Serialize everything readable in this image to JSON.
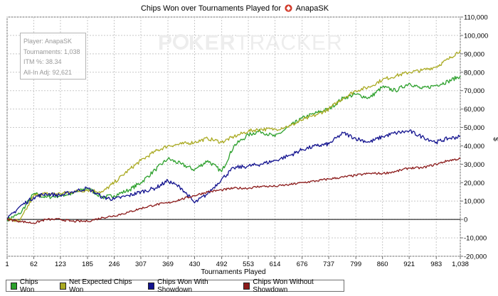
{
  "page": {
    "title_prefix": "Chips Won over Tournaments Played for",
    "player_name": "AnapaSK",
    "watermark": {
      "left": "P",
      "bold": "KER",
      "light": "TRACKER"
    },
    "stats": {
      "player": "Player: AnapaSK",
      "tournaments": "Tournaments: 1,038",
      "itm": "ITM %: 38.34",
      "allin": "All-In Adj: 92,621"
    },
    "legend": [
      {
        "label": "Chips Won",
        "color": "#2ca02c"
      },
      {
        "label": "Net Expected Chips Won",
        "color": "#aaaa22"
      },
      {
        "label": "Chips Won With Showdown",
        "color": "#12128f"
      },
      {
        "label": "Chips Won Without Showdown",
        "color": "#8b1a1a"
      }
    ],
    "icons": {
      "spade": "spade-icon",
      "chip": "poker-chip-icon"
    }
  },
  "chart_data": {
    "type": "line",
    "xlabel": "Tournaments Played",
    "ylabel": "$",
    "xlim": [
      1,
      1038
    ],
    "ylim": [
      -20000,
      110000
    ],
    "x_ticks": [
      1,
      62,
      123,
      185,
      246,
      307,
      369,
      430,
      492,
      553,
      614,
      676,
      737,
      799,
      860,
      921,
      983,
      1038
    ],
    "x_tick_labels": [
      "1",
      "62",
      "123",
      "185",
      "246",
      "307",
      "369",
      "430",
      "492",
      "553",
      "614",
      "676",
      "737",
      "799",
      "860",
      "921",
      "983",
      "1,038"
    ],
    "y_ticks": [
      -20000,
      -10000,
      0,
      10000,
      20000,
      30000,
      40000,
      50000,
      60000,
      70000,
      80000,
      90000,
      100000,
      110000
    ],
    "y_tick_labels": [
      "-20,000",
      "-10,000",
      "0",
      "10,000",
      "20,000",
      "30,000",
      "40,000",
      "50,000",
      "60,000",
      "70,000",
      "80,000",
      "90,000",
      "100,000",
      "110,000"
    ],
    "grid": true,
    "legend_position": "bottom",
    "series": [
      {
        "name": "Chips Won",
        "color": "#2ca02c",
        "x": [
          1,
          30,
          62,
          90,
          123,
          150,
          185,
          220,
          246,
          280,
          307,
          340,
          369,
          400,
          430,
          460,
          492,
          520,
          553,
          580,
          614,
          650,
          676,
          710,
          737,
          770,
          799,
          830,
          860,
          890,
          921,
          950,
          983,
          1010,
          1038
        ],
        "y": [
          0,
          3000,
          14000,
          12000,
          13000,
          14000,
          17000,
          12000,
          13000,
          16000,
          20000,
          27000,
          33000,
          30000,
          27000,
          32000,
          26000,
          40000,
          46000,
          48000,
          45000,
          51000,
          55000,
          58000,
          60000,
          66000,
          68000,
          66000,
          72000,
          70000,
          74000,
          71000,
          73000,
          75000,
          78000
        ]
      },
      {
        "name": "Net Expected Chips Won",
        "color": "#aaaa22",
        "x": [
          1,
          30,
          62,
          90,
          123,
          150,
          185,
          220,
          246,
          280,
          307,
          340,
          369,
          400,
          430,
          460,
          492,
          520,
          553,
          580,
          614,
          650,
          676,
          710,
          737,
          770,
          799,
          830,
          860,
          890,
          921,
          950,
          983,
          1010,
          1038
        ],
        "y": [
          0,
          -1000,
          13000,
          14000,
          14000,
          15000,
          16000,
          15000,
          20000,
          27000,
          32000,
          37000,
          40000,
          41000,
          42000,
          44000,
          42000,
          45000,
          48000,
          49000,
          49000,
          51000,
          54000,
          57000,
          60000,
          66000,
          70000,
          72000,
          76000,
          78000,
          80000,
          81000,
          83000,
          87000,
          92000
        ]
      },
      {
        "name": "Chips Won With Showdown",
        "color": "#12128f",
        "x": [
          1,
          30,
          62,
          90,
          123,
          150,
          185,
          220,
          246,
          280,
          307,
          340,
          369,
          400,
          430,
          460,
          492,
          520,
          553,
          580,
          614,
          650,
          676,
          710,
          737,
          770,
          799,
          830,
          860,
          890,
          921,
          950,
          983,
          1010,
          1038
        ],
        "y": [
          0,
          7000,
          12000,
          14000,
          13000,
          15000,
          17000,
          12000,
          11000,
          13000,
          15000,
          17000,
          21000,
          17000,
          9000,
          14000,
          22000,
          28000,
          29000,
          30000,
          32000,
          35000,
          38000,
          40000,
          41000,
          47000,
          44000,
          42000,
          45000,
          47000,
          48000,
          45000,
          42000,
          44000,
          45000
        ]
      },
      {
        "name": "Chips Won Without Showdown",
        "color": "#8b1a1a",
        "x": [
          1,
          30,
          62,
          90,
          123,
          150,
          185,
          220,
          246,
          280,
          307,
          340,
          369,
          400,
          430,
          460,
          492,
          520,
          553,
          580,
          614,
          650,
          676,
          710,
          737,
          770,
          799,
          830,
          860,
          890,
          921,
          950,
          983,
          1010,
          1038
        ],
        "y": [
          0,
          -1000,
          -2000,
          0,
          0,
          -1000,
          -1000,
          1000,
          2000,
          4000,
          6000,
          8000,
          9000,
          11000,
          13000,
          15000,
          16000,
          17000,
          17000,
          18000,
          18000,
          19000,
          20000,
          21000,
          22000,
          23000,
          24000,
          25000,
          25000,
          26000,
          28000,
          28000,
          30000,
          32000,
          33000
        ]
      }
    ]
  }
}
